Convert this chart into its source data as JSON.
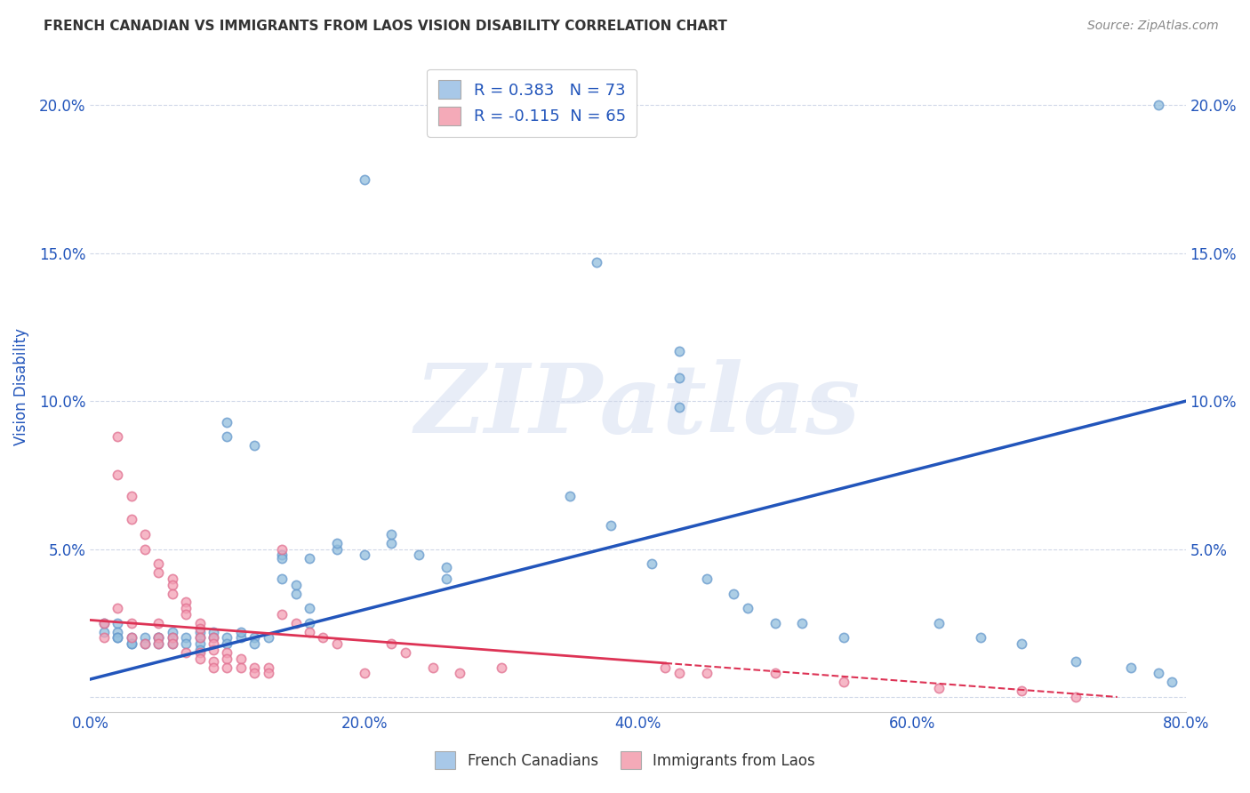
{
  "title": "FRENCH CANADIAN VS IMMIGRANTS FROM LAOS VISION DISABILITY CORRELATION CHART",
  "source": "Source: ZipAtlas.com",
  "ylabel": "Vision Disability",
  "xlim": [
    0.0,
    0.8
  ],
  "ylim": [
    -0.005,
    0.215
  ],
  "xticks": [
    0.0,
    0.2,
    0.4,
    0.6,
    0.8
  ],
  "yticks": [
    0.0,
    0.05,
    0.1,
    0.15,
    0.2
  ],
  "xtick_labels": [
    "0.0%",
    "20.0%",
    "40.0%",
    "60.0%",
    "80.0%"
  ],
  "ytick_labels": [
    "",
    "5.0%",
    "10.0%",
    "15.0%",
    "20.0%"
  ],
  "watermark": "ZIPatlas",
  "legend_box_color_blue": "#a8c8e8",
  "legend_box_color_pink": "#f4aab8",
  "legend_text_color": "#2255bb",
  "blue_R": 0.383,
  "blue_N": 73,
  "pink_R": -0.115,
  "pink_N": 65,
  "blue_color": "#92bedd",
  "pink_color": "#f4a0b5",
  "blue_edge_color": "#6699cc",
  "pink_edge_color": "#e07090",
  "blue_line_color": "#2255bb",
  "pink_line_color": "#dd3355",
  "background_color": "#ffffff",
  "grid_color": "#d0d8e8",
  "title_color": "#333333",
  "axis_label_color": "#2255bb",
  "tick_color": "#2255bb",
  "marker_size": 55,
  "marker_linewidth": 1.2,
  "blue_scatter_x": [
    0.2,
    0.37,
    0.43,
    0.43,
    0.43,
    0.1,
    0.1,
    0.12,
    0.14,
    0.16,
    0.18,
    0.18,
    0.2,
    0.22,
    0.22,
    0.24,
    0.26,
    0.26,
    0.02,
    0.02,
    0.03,
    0.03,
    0.04,
    0.04,
    0.05,
    0.05,
    0.05,
    0.06,
    0.06,
    0.06,
    0.07,
    0.07,
    0.08,
    0.08,
    0.08,
    0.08,
    0.09,
    0.09,
    0.1,
    0.1,
    0.11,
    0.11,
    0.12,
    0.12,
    0.13,
    0.14,
    0.14,
    0.15,
    0.15,
    0.16,
    0.16,
    0.35,
    0.38,
    0.41,
    0.45,
    0.47,
    0.48,
    0.5,
    0.52,
    0.55,
    0.62,
    0.65,
    0.68,
    0.72,
    0.76,
    0.78,
    0.78,
    0.79,
    0.01,
    0.01,
    0.02,
    0.02,
    0.03
  ],
  "blue_scatter_y": [
    0.175,
    0.147,
    0.117,
    0.108,
    0.098,
    0.093,
    0.088,
    0.085,
    0.048,
    0.047,
    0.05,
    0.052,
    0.048,
    0.052,
    0.055,
    0.048,
    0.044,
    0.04,
    0.025,
    0.022,
    0.02,
    0.018,
    0.02,
    0.018,
    0.02,
    0.018,
    0.02,
    0.022,
    0.018,
    0.02,
    0.02,
    0.018,
    0.022,
    0.02,
    0.018,
    0.016,
    0.022,
    0.02,
    0.02,
    0.018,
    0.02,
    0.022,
    0.02,
    0.018,
    0.02,
    0.047,
    0.04,
    0.038,
    0.035,
    0.03,
    0.025,
    0.068,
    0.058,
    0.045,
    0.04,
    0.035,
    0.03,
    0.025,
    0.025,
    0.02,
    0.025,
    0.02,
    0.018,
    0.012,
    0.01,
    0.008,
    0.2,
    0.005,
    0.025,
    0.022,
    0.02,
    0.02,
    0.018
  ],
  "pink_scatter_x": [
    0.01,
    0.01,
    0.02,
    0.02,
    0.02,
    0.03,
    0.03,
    0.03,
    0.03,
    0.04,
    0.04,
    0.04,
    0.05,
    0.05,
    0.05,
    0.05,
    0.05,
    0.06,
    0.06,
    0.06,
    0.06,
    0.06,
    0.07,
    0.07,
    0.07,
    0.07,
    0.08,
    0.08,
    0.08,
    0.08,
    0.08,
    0.09,
    0.09,
    0.09,
    0.09,
    0.09,
    0.1,
    0.1,
    0.1,
    0.11,
    0.11,
    0.12,
    0.12,
    0.13,
    0.13,
    0.14,
    0.14,
    0.15,
    0.16,
    0.17,
    0.18,
    0.2,
    0.22,
    0.23,
    0.25,
    0.27,
    0.3,
    0.42,
    0.43,
    0.45,
    0.5,
    0.55,
    0.62,
    0.68,
    0.72
  ],
  "pink_scatter_y": [
    0.025,
    0.02,
    0.088,
    0.075,
    0.03,
    0.068,
    0.06,
    0.025,
    0.02,
    0.055,
    0.05,
    0.018,
    0.045,
    0.042,
    0.025,
    0.02,
    0.018,
    0.04,
    0.038,
    0.035,
    0.02,
    0.018,
    0.032,
    0.03,
    0.028,
    0.015,
    0.025,
    0.023,
    0.02,
    0.015,
    0.013,
    0.02,
    0.018,
    0.016,
    0.012,
    0.01,
    0.015,
    0.013,
    0.01,
    0.013,
    0.01,
    0.01,
    0.008,
    0.01,
    0.008,
    0.05,
    0.028,
    0.025,
    0.022,
    0.02,
    0.018,
    0.008,
    0.018,
    0.015,
    0.01,
    0.008,
    0.01,
    0.01,
    0.008,
    0.008,
    0.008,
    0.005,
    0.003,
    0.002,
    0.0
  ],
  "blue_trend_x": [
    0.0,
    0.8
  ],
  "blue_trend_y": [
    0.006,
    0.1
  ],
  "pink_trend_x": [
    0.0,
    0.75
  ],
  "pink_trend_y": [
    0.026,
    0.0
  ]
}
